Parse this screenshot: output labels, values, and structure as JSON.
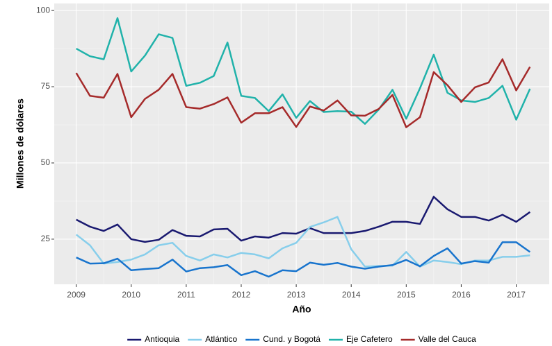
{
  "chart_data": {
    "type": "line",
    "x_label": "Año",
    "y_label": "Millones de dólares",
    "x": [
      2009,
      2009.25,
      2009.5,
      2009.75,
      2010,
      2010.25,
      2010.5,
      2010.75,
      2011,
      2011.25,
      2011.5,
      2011.75,
      2012,
      2012.25,
      2012.5,
      2012.75,
      2013,
      2013.25,
      2013.5,
      2013.75,
      2014,
      2014.25,
      2014.5,
      2014.75,
      2015,
      2015.25,
      2015.5,
      2015.75,
      2016,
      2016.25,
      2016.5,
      2016.75,
      2017,
      2017.25
    ],
    "xlim": [
      2008.6,
      2017.6
    ],
    "xticks": [
      2009,
      2010,
      2011,
      2012,
      2013,
      2014,
      2015,
      2016,
      2017
    ],
    "ylim": [
      10.2,
      102.3
    ],
    "yticks": [
      25,
      50,
      75,
      100
    ],
    "grid": true,
    "legend_position": "bottom",
    "series": [
      {
        "name": "Antioquia",
        "color": "#191970",
        "values": [
          31.4,
          29.1,
          27.7,
          29.8,
          25,
          24.1,
          24.8,
          28,
          26.1,
          25.9,
          28.2,
          28.4,
          24.5,
          25.9,
          25.5,
          27,
          26.8,
          28.6,
          27,
          27,
          27,
          27.7,
          29.1,
          30.7,
          30.7,
          30,
          38.9,
          34.8,
          32.3,
          32.3,
          31.1,
          33,
          30.7,
          33.9
        ]
      },
      {
        "name": "Atlántico",
        "color": "#87ceeb",
        "values": [
          26.5,
          23,
          17,
          17.5,
          18.3,
          20,
          23,
          23.8,
          19.5,
          18,
          20,
          19,
          20.5,
          20,
          18.7,
          22,
          23.8,
          29,
          30.5,
          32.3,
          21.7,
          16,
          16.2,
          16.3,
          20.8,
          16,
          18,
          17.5,
          16.8,
          18,
          18,
          19.2,
          19.2,
          19.7
        ]
      },
      {
        "name": "Cund. y Bogotá",
        "color": "#1874cd",
        "values": [
          19,
          17,
          17.1,
          18.6,
          14.8,
          15.2,
          15.5,
          18.3,
          14.4,
          15.5,
          15.8,
          16.5,
          13.2,
          14.5,
          12.7,
          14.8,
          14.5,
          17.3,
          16.6,
          17.2,
          16,
          15.3,
          16,
          16.5,
          18.2,
          16.1,
          19.5,
          22,
          17,
          17.8,
          17.3,
          24,
          24,
          20.8
        ]
      },
      {
        "name": "Eje Cafetero",
        "color": "#20b2aa",
        "values": [
          87.5,
          85,
          84,
          97.5,
          80,
          85.2,
          92.2,
          91,
          75.3,
          76.3,
          78.5,
          89.5,
          72,
          71.3,
          67,
          72.5,
          64.8,
          70.3,
          66.7,
          67,
          66.8,
          62.8,
          67.5,
          74,
          64.5,
          74.5,
          85.5,
          73,
          70.5,
          70,
          71.3,
          75.3,
          64.2,
          74.3
        ]
      },
      {
        "name": "Valle del Cauca",
        "color": "#a52a2a",
        "values": [
          79.5,
          72,
          71.4,
          79.2,
          65,
          71,
          74,
          79.2,
          68.3,
          67.8,
          69.3,
          71.5,
          63.2,
          66.3,
          66.3,
          68.3,
          61.8,
          68.5,
          67.2,
          70.5,
          65.6,
          65.5,
          67.7,
          72.3,
          61.7,
          65,
          79.8,
          75.5,
          70,
          74.8,
          76.4,
          84,
          73.8,
          81.5
        ]
      }
    ]
  }
}
